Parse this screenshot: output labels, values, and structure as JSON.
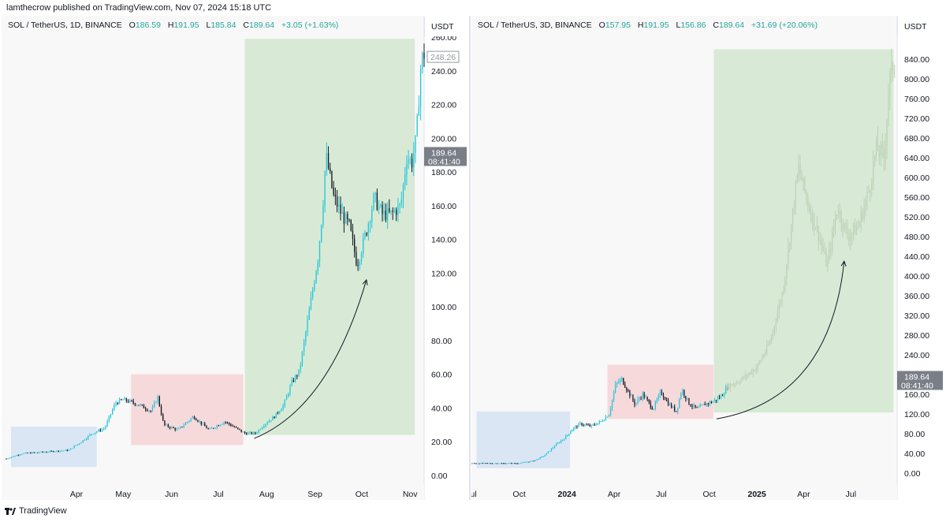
{
  "header": {
    "published": "lamthecrow published on TradingView.com, Nov 07, 2024 15:18 UTC"
  },
  "left": {
    "symbol": "SOL / TetherUS, 1D, BINANCE",
    "ohlc": {
      "o_label": "O",
      "o": "186.59",
      "h_label": "H",
      "h": "191.95",
      "l_label": "L",
      "l": "185.84",
      "c_label": "C",
      "c": "189.64",
      "chg": "+3.05 (+1.63%)"
    },
    "currency": "USDT",
    "last_price": "189.64",
    "countdown": "08:41:40",
    "ref_price": "248.26"
  },
  "right": {
    "symbol": "SOL / TetherUS, 3D, BINANCE",
    "ohlc": {
      "o_label": "O",
      "o": "157.95",
      "h_label": "H",
      "h": "191.95",
      "l_label": "L",
      "l": "156.86",
      "c_label": "C",
      "c": "189.64",
      "chg": "+31.69 (+20.06%)"
    },
    "currency": "USDT",
    "last_price": "189.64",
    "countdown": "08:41:40"
  },
  "footer": {
    "brand": "TradingView"
  },
  "colors": {
    "up": "#26c6da",
    "down": "#131722",
    "accent": "#26a69a",
    "blue_box": "#dae6f4",
    "red_box": "#f6d9db",
    "green_box": "#d8ead5"
  },
  "chart_data": [
    {
      "type": "candlestick",
      "title": "SOL / TetherUS, 1D, BINANCE",
      "ylim": [
        0,
        260
      ],
      "yticks": [
        "260.00",
        "240.00",
        "220.00",
        "200.00",
        "180.00",
        "160.00",
        "140.00",
        "120.00",
        "100.00",
        "80.00",
        "60.00",
        "40.00",
        "20.00",
        "0.00"
      ],
      "xticks": [
        {
          "label": "Apr",
          "t": 30
        },
        {
          "label": "May",
          "t": 60
        },
        {
          "label": "Jun",
          "t": 91
        },
        {
          "label": "Jul",
          "t": 121
        },
        {
          "label": "Aug",
          "t": 152
        },
        {
          "label": "Sep",
          "t": 183
        },
        {
          "label": "Oct",
          "t": 213
        },
        {
          "label": "Nov",
          "t": 244
        }
      ],
      "t_range": [
        -15,
        253
      ],
      "path": [
        [
          -15,
          10
        ],
        [
          -5,
          13
        ],
        [
          10,
          14
        ],
        [
          25,
          15
        ],
        [
          33,
          20
        ],
        [
          40,
          25
        ],
        [
          48,
          28
        ],
        [
          55,
          43
        ],
        [
          60,
          45
        ],
        [
          70,
          42
        ],
        [
          78,
          38
        ],
        [
          82,
          47
        ],
        [
          86,
          30
        ],
        [
          95,
          27
        ],
        [
          105,
          35
        ],
        [
          115,
          27
        ],
        [
          125,
          32
        ],
        [
          138,
          25
        ],
        [
          145,
          25
        ],
        [
          150,
          30
        ],
        [
          157,
          35
        ],
        [
          163,
          42
        ],
        [
          168,
          55
        ],
        [
          173,
          62
        ],
        [
          178,
          90
        ],
        [
          185,
          130
        ],
        [
          188,
          160
        ],
        [
          190,
          190
        ],
        [
          195,
          165
        ],
        [
          200,
          155
        ],
        [
          205,
          148
        ],
        [
          210,
          125
        ],
        [
          216,
          145
        ],
        [
          221,
          165
        ],
        [
          226,
          155
        ],
        [
          232,
          155
        ],
        [
          238,
          160
        ],
        [
          242,
          190
        ],
        [
          245,
          185
        ],
        [
          248,
          200
        ],
        [
          251,
          245
        ],
        [
          253,
          250
        ]
      ],
      "shadow_path": [],
      "overlays": [
        {
          "name": "blue-consolidation-box",
          "t0": -12,
          "t1": 43,
          "y0": 5,
          "y1": 29,
          "color": "#dae6f4"
        },
        {
          "name": "red-consolidation-box",
          "t0": 65,
          "t1": 137,
          "y0": 18,
          "y1": 60,
          "color": "#f6d9db"
        },
        {
          "name": "green-rally-box",
          "t0": 138,
          "t1": 247,
          "y0": 24,
          "y1": 259,
          "color": "#d8ead5"
        }
      ],
      "arrow": {
        "from": [
          144,
          22
        ],
        "ctrl": [
          192,
          40
        ],
        "to": [
          216,
          116
        ]
      }
    },
    {
      "type": "candlestick",
      "title": "SOL / TetherUS, 3D, BINANCE",
      "ylim": [
        0,
        880
      ],
      "yticks": [
        "840.00",
        "800.00",
        "760.00",
        "720.00",
        "680.00",
        "640.00",
        "600.00",
        "560.00",
        "520.00",
        "480.00",
        "440.00",
        "400.00",
        "360.00",
        "320.00",
        "280.00",
        "240.00",
        "200.00",
        "160.00",
        "120.00",
        "80.00",
        "40.00",
        "0.00"
      ],
      "xticks": [
        {
          "label": "Jul",
          "t": 0
        },
        {
          "label": "Oct",
          "t": 92
        },
        {
          "label": "2024",
          "t": 184
        },
        {
          "label": "Apr",
          "t": 275
        },
        {
          "label": "Jul",
          "t": 366
        },
        {
          "label": "Oct",
          "t": 458
        },
        {
          "label": "2025",
          "t": 550
        },
        {
          "label": "Apr",
          "t": 640
        },
        {
          "label": "Jul",
          "t": 731
        }
      ],
      "t_range": [
        0,
        820
      ],
      "path": [
        [
          0,
          20
        ],
        [
          60,
          20
        ],
        [
          90,
          20
        ],
        [
          120,
          25
        ],
        [
          140,
          35
        ],
        [
          160,
          55
        ],
        [
          180,
          72
        ],
        [
          195,
          90
        ],
        [
          210,
          100
        ],
        [
          230,
          95
        ],
        [
          250,
          105
        ],
        [
          265,
          120
        ],
        [
          278,
          180
        ],
        [
          290,
          190
        ],
        [
          300,
          170
        ],
        [
          315,
          140
        ],
        [
          330,
          160
        ],
        [
          350,
          130
        ],
        [
          365,
          165
        ],
        [
          380,
          140
        ],
        [
          395,
          125
        ],
        [
          405,
          170
        ],
        [
          420,
          140
        ],
        [
          435,
          130
        ],
        [
          450,
          140
        ],
        [
          465,
          145
        ],
        [
          480,
          155
        ],
        [
          493,
          175
        ]
      ],
      "shadow_path": [
        [
          493,
          175
        ],
        [
          520,
          190
        ],
        [
          550,
          215
        ],
        [
          575,
          265
        ],
        [
          600,
          370
        ],
        [
          630,
          620
        ],
        [
          650,
          540
        ],
        [
          670,
          480
        ],
        [
          685,
          420
        ],
        [
          705,
          540
        ],
        [
          725,
          480
        ],
        [
          745,
          500
        ],
        [
          765,
          570
        ],
        [
          780,
          660
        ],
        [
          795,
          640
        ],
        [
          805,
          800
        ],
        [
          815,
          830
        ]
      ],
      "overlays": [
        {
          "name": "blue-consolidation-box",
          "t0": 10,
          "t1": 190,
          "y0": 10,
          "y1": 125,
          "color": "#dae6f4"
        },
        {
          "name": "red-consolidation-box",
          "t0": 262,
          "t1": 466,
          "y0": 110,
          "y1": 220,
          "color": "#f6d9db"
        },
        {
          "name": "green-rally-box",
          "t0": 467,
          "t1": 813,
          "y0": 123,
          "y1": 860,
          "color": "#d8ead5"
        }
      ],
      "arrow": {
        "from": [
          472,
          110
        ],
        "ctrl": [
          690,
          150
        ],
        "to": [
          718,
          430
        ]
      }
    }
  ]
}
